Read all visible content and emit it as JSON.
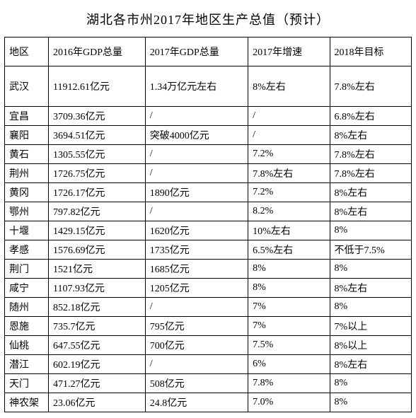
{
  "title": "湖北各市州2017年地区生产总值（预计）",
  "columns": [
    "地区",
    "2016年GDP总量",
    "2017年GDP总量",
    "2017年增速",
    "2018年目标"
  ],
  "rows": [
    {
      "region": "武汉",
      "gdp2016": "11912.61亿元",
      "gdp2017": "1.34万亿元左右",
      "growth": "8%左右",
      "target": "7.8%左右",
      "tall": true
    },
    {
      "region": "宜昌",
      "gdp2016": "3709.36亿元",
      "gdp2017": "/",
      "growth": "/",
      "target": "6.8%左右"
    },
    {
      "region": "襄阳",
      "gdp2016": "3694.51亿元",
      "gdp2017": "突破4000亿元",
      "growth": "/",
      "target": "8%左右"
    },
    {
      "region": "黄石",
      "gdp2016": "1305.55亿元",
      "gdp2017": "/",
      "growth": "7.2%",
      "target": "7.8%左右"
    },
    {
      "region": "荆州",
      "gdp2016": "1726.75亿元",
      "gdp2017": "/",
      "growth": "7.8%左右",
      "target": "7.8%左右"
    },
    {
      "region": "黄冈",
      "gdp2016": "1726.17亿元",
      "gdp2017": "1890亿元",
      "growth": "7.2%",
      "target": "8%左右"
    },
    {
      "region": "鄂州",
      "gdp2016": "797.82亿元",
      "gdp2017": "/",
      "growth": "8.2%",
      "target": "8%左右"
    },
    {
      "region": "十堰",
      "gdp2016": "1429.15亿元",
      "gdp2017": "1620亿元",
      "growth": "10%左右",
      "target": "8%"
    },
    {
      "region": "孝感",
      "gdp2016": "1576.69亿元",
      "gdp2017": "1735亿元",
      "growth": "6.5%左右",
      "target": "不低于7.5%"
    },
    {
      "region": "荆门",
      "gdp2016": "1521亿元",
      "gdp2017": "1685亿元",
      "growth": "8%",
      "target": "8%"
    },
    {
      "region": "咸宁",
      "gdp2016": "1107.93亿元",
      "gdp2017": "1205亿元",
      "growth": "8%",
      "target": "8%左右"
    },
    {
      "region": "随州",
      "gdp2016": "852.18亿元",
      "gdp2017": "/",
      "growth": "7%",
      "target": "8%"
    },
    {
      "region": "恩施",
      "gdp2016": "735.7亿元",
      "gdp2017": "795亿元",
      "growth": "7%",
      "target": "7%以上"
    },
    {
      "region": "仙桃",
      "gdp2016": "647.55亿元",
      "gdp2017": "700亿元",
      "growth": "7.5%",
      "target": "8%以上"
    },
    {
      "region": "潜江",
      "gdp2016": "602.19亿元",
      "gdp2017": "/",
      "growth": "6%",
      "target": "8%左右"
    },
    {
      "region": "天门",
      "gdp2016": "471.27亿元",
      "gdp2017": "508亿元",
      "growth": "7.8%",
      "target": "8%"
    },
    {
      "region": "神农架",
      "gdp2016": "23.06亿元",
      "gdp2017": "24.8亿元",
      "growth": "7.0%",
      "target": "8%"
    }
  ]
}
